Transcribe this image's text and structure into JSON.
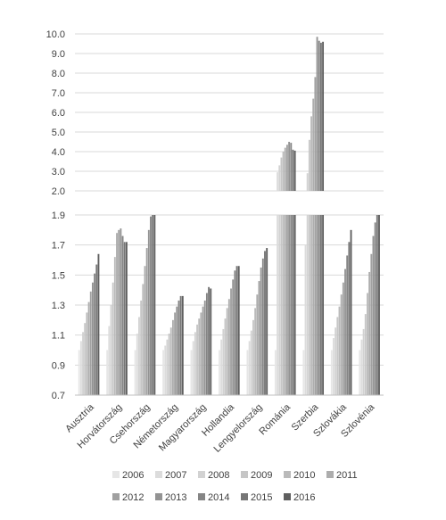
{
  "chart_data": {
    "type": "bar",
    "broken_axis": true,
    "upper_panel": {
      "ylim": [
        2.0,
        10.0
      ],
      "ticks": [
        "2.0",
        "3.0",
        "4.0",
        "5.0",
        "6.0",
        "7.0",
        "8.0",
        "9.0",
        "10.0"
      ]
    },
    "lower_panel": {
      "ylim": [
        0.7,
        1.9
      ],
      "ticks": [
        "0.7",
        "0.9",
        "1.1",
        "1.3",
        "1.5",
        "1.7",
        "1.9"
      ]
    },
    "categories": [
      "Ausztria",
      "Horvátország",
      "Csehország",
      "Németország",
      "Magyarország",
      "Hollandia",
      "Lengyelország",
      "Románia",
      "Szerbia",
      "Szlovákia",
      "Szlovénia"
    ],
    "legend_position": "bottom",
    "series": [
      {
        "name": "2006",
        "color": "#e6e6e6",
        "values": [
          1.0,
          1.0,
          1.0,
          1.0,
          1.0,
          1.0,
          1.0,
          1.0,
          1.0,
          1.0,
          1.0
        ]
      },
      {
        "name": "2007",
        "color": "#dcdcdc",
        "values": [
          1.06,
          1.16,
          1.11,
          1.03,
          1.06,
          1.07,
          1.06,
          2.95,
          1.7,
          1.08,
          1.07
        ]
      },
      {
        "name": "2008",
        "color": "#d2d2d2",
        "values": [
          1.12,
          1.3,
          1.22,
          1.07,
          1.12,
          1.14,
          1.13,
          3.3,
          2.9,
          1.15,
          1.14
        ]
      },
      {
        "name": "2009",
        "color": "#c6c6c6",
        "values": [
          1.18,
          1.45,
          1.33,
          1.11,
          1.17,
          1.21,
          1.2,
          3.7,
          4.6,
          1.22,
          1.24
        ]
      },
      {
        "name": "2010",
        "color": "#bababa",
        "values": [
          1.25,
          1.62,
          1.44,
          1.15,
          1.21,
          1.28,
          1.28,
          4.0,
          5.8,
          1.29,
          1.38
        ]
      },
      {
        "name": "2011",
        "color": "#adadad",
        "values": [
          1.32,
          1.78,
          1.56,
          1.2,
          1.25,
          1.34,
          1.37,
          4.2,
          6.7,
          1.37,
          1.52
        ]
      },
      {
        "name": "2012",
        "color": "#a0a0a0",
        "values": [
          1.39,
          1.8,
          1.68,
          1.25,
          1.29,
          1.41,
          1.46,
          4.35,
          7.8,
          1.45,
          1.64
        ]
      },
      {
        "name": "2013",
        "color": "#939393",
        "values": [
          1.45,
          1.81,
          1.8,
          1.29,
          1.33,
          1.47,
          1.55,
          4.5,
          9.85,
          1.54,
          1.76
        ]
      },
      {
        "name": "2014",
        "color": "#858585",
        "values": [
          1.51,
          1.76,
          1.89,
          1.33,
          1.38,
          1.53,
          1.61,
          4.45,
          9.65,
          1.63,
          1.85
        ]
      },
      {
        "name": "2015",
        "color": "#767676",
        "values": [
          1.57,
          1.72,
          1.95,
          1.36,
          1.42,
          1.56,
          1.66,
          4.1,
          9.55,
          1.72,
          1.93
        ]
      },
      {
        "name": "2016",
        "color": "#5f5f5f",
        "values": [
          1.64,
          1.72,
          2.0,
          1.36,
          1.41,
          1.56,
          1.68,
          4.05,
          9.6,
          1.8,
          2.0
        ]
      }
    ]
  }
}
